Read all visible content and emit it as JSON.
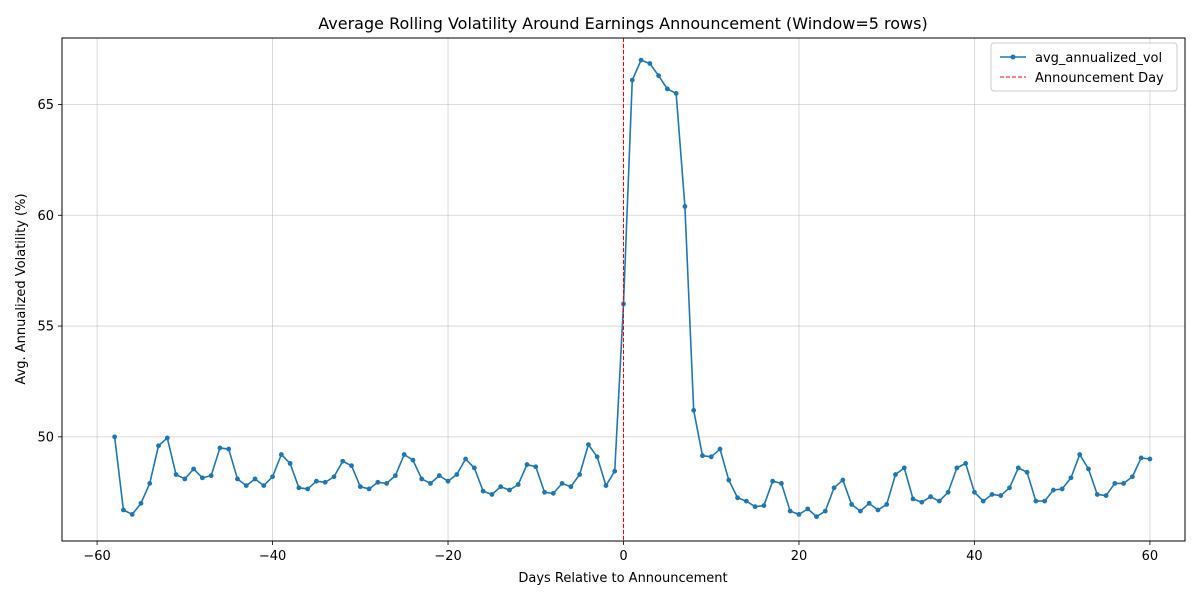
{
  "chart_data": {
    "type": "line",
    "title": "Average Rolling Volatility Around Earnings Announcement (Window=5 rows)",
    "xlabel": "Days Relative to Announcement",
    "ylabel": "Avg. Annualized Volatility (%)",
    "xlim": [
      -64,
      64
    ],
    "ylim": [
      45.3,
      68.0
    ],
    "xticks": [
      -60,
      -40,
      -20,
      0,
      20,
      40,
      60
    ],
    "xtick_labels": [
      "−60",
      "−40",
      "−20",
      "0",
      "20",
      "40",
      "60"
    ],
    "yticks": [
      50,
      55,
      60,
      65
    ],
    "yticks_labels": [
      "50",
      "55",
      "60",
      "65"
    ],
    "grid": true,
    "legend_position": "top-right",
    "series": [
      {
        "name": "avg_annualized_vol",
        "color": "#1f77b4",
        "x": [
          -58,
          -57,
          -56,
          -55,
          -54,
          -53,
          -52,
          -51,
          -50,
          -49,
          -48,
          -47,
          -46,
          -45,
          -44,
          -43,
          -42,
          -41,
          -40,
          -39,
          -38,
          -37,
          -36,
          -35,
          -34,
          -33,
          -32,
          -31,
          -30,
          -29,
          -28,
          -27,
          -26,
          -25,
          -24,
          -23,
          -22,
          -21,
          -20,
          -19,
          -18,
          -17,
          -16,
          -15,
          -14,
          -13,
          -12,
          -11,
          -10,
          -9,
          -8,
          -7,
          -6,
          -5,
          -4,
          -3,
          -2,
          -1,
          0,
          1,
          2,
          3,
          4,
          5,
          6,
          7,
          8,
          9,
          10,
          11,
          12,
          13,
          14,
          15,
          16,
          17,
          18,
          19,
          20,
          21,
          22,
          23,
          24,
          25,
          26,
          27,
          28,
          29,
          30,
          31,
          32,
          33,
          34,
          35,
          36,
          37,
          38,
          39,
          40,
          41,
          42,
          43,
          44,
          45,
          46,
          47,
          48,
          49,
          50,
          51,
          52,
          53,
          54,
          55,
          56,
          57,
          58,
          59,
          60
        ],
        "y": [
          50.0,
          46.7,
          46.5,
          47.0,
          47.9,
          49.6,
          49.95,
          48.3,
          48.1,
          48.55,
          48.15,
          48.25,
          49.5,
          49.45,
          48.1,
          47.8,
          48.1,
          47.8,
          48.2,
          49.2,
          48.8,
          47.7,
          47.65,
          48.0,
          47.95,
          48.2,
          48.9,
          48.7,
          47.75,
          47.65,
          47.95,
          47.9,
          48.25,
          49.2,
          48.95,
          48.1,
          47.9,
          48.25,
          48.0,
          48.3,
          49.0,
          48.6,
          47.55,
          47.4,
          47.75,
          47.6,
          47.85,
          48.75,
          48.65,
          47.5,
          47.45,
          47.9,
          47.75,
          48.3,
          49.65,
          49.1,
          47.8,
          48.45,
          56.0,
          66.1,
          67.0,
          66.85,
          66.3,
          65.7,
          65.5,
          60.4,
          51.2,
          49.15,
          49.1,
          49.45,
          48.05,
          47.25,
          47.1,
          46.85,
          46.9,
          48.0,
          47.9,
          46.65,
          46.5,
          46.75,
          46.4,
          46.65,
          47.7,
          48.05,
          46.95,
          46.65,
          47.0,
          46.7,
          46.95,
          48.3,
          48.6,
          47.2,
          47.05,
          47.3,
          47.1,
          47.5,
          48.6,
          48.8,
          47.5,
          47.1,
          47.4,
          47.35,
          47.7,
          48.6,
          48.4,
          47.1,
          47.1,
          47.6,
          47.65,
          48.15,
          49.2,
          48.55,
          47.4,
          47.35,
          47.9,
          47.9,
          48.2,
          49.05,
          49.0
        ]
      }
    ],
    "vline": {
      "x": 0,
      "label": "Announcement Day",
      "color": "#ff0000"
    }
  }
}
